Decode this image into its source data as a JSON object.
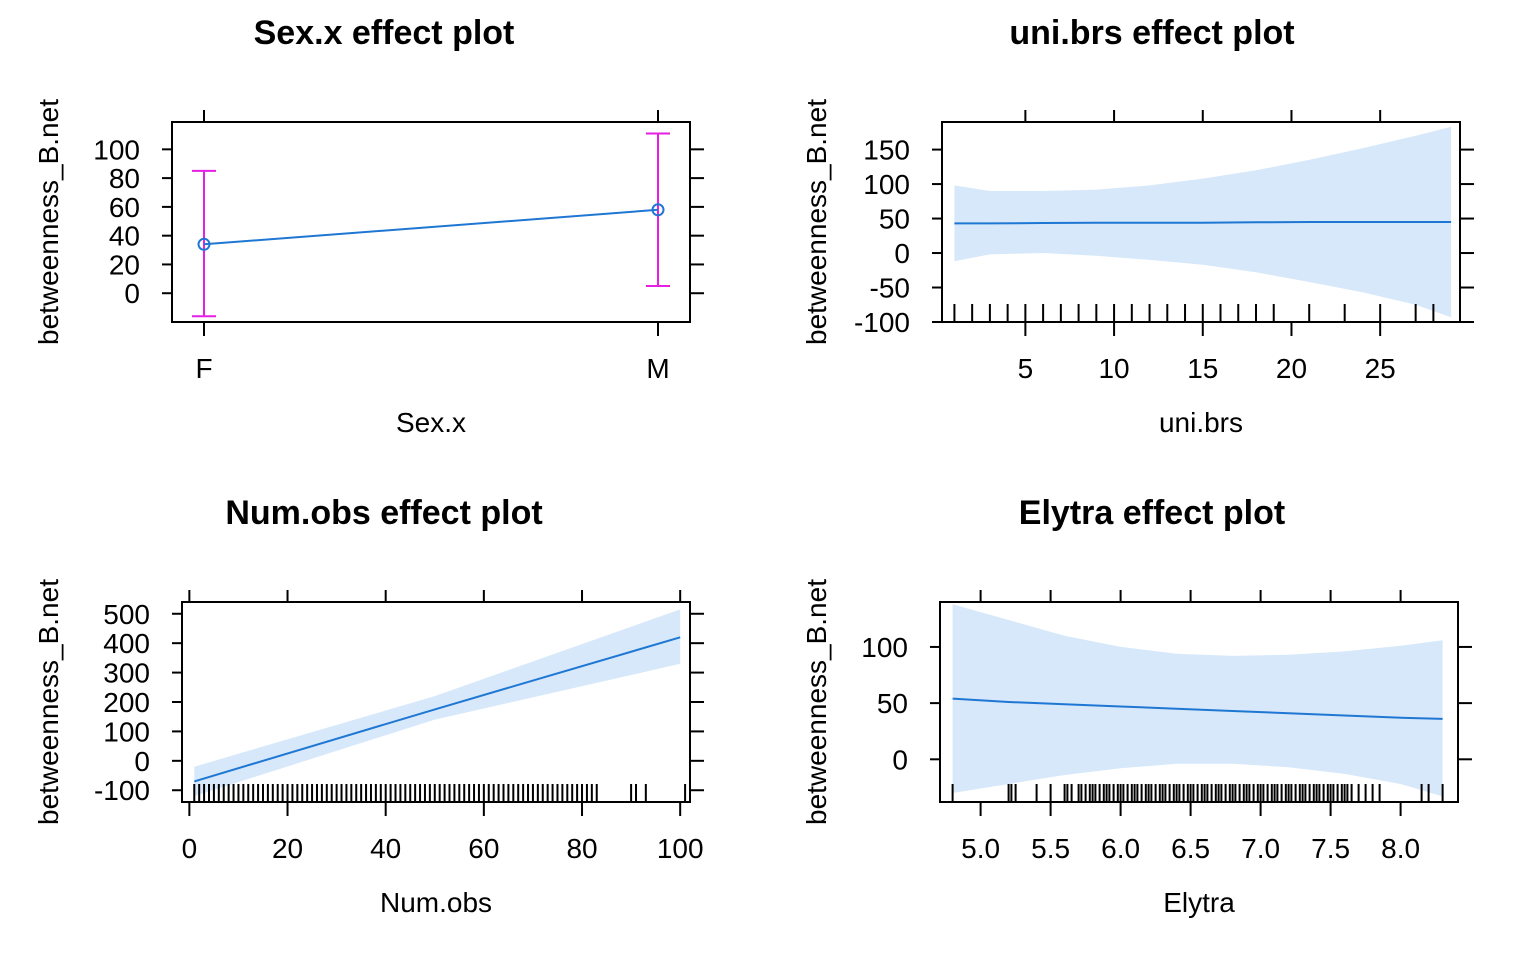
{
  "chart_data": [
    {
      "type": "errorbar",
      "title": "Sex.x effect plot",
      "xlabel": "Sex.x",
      "ylabel": "betweenness_B.net",
      "categories": [
        "F",
        "M"
      ],
      "estimates": [
        34,
        58
      ],
      "lower": [
        -16,
        5
      ],
      "upper": [
        85,
        111
      ],
      "ylim": [
        -20,
        119
      ],
      "yticks": [
        0,
        20,
        40,
        60,
        80,
        100
      ],
      "line_color": "#1f77d4",
      "bar_color": "#e61ee6"
    },
    {
      "type": "line",
      "title": "uni.brs effect plot",
      "xlabel": "uni.brs",
      "ylabel": "betweenness_B.net",
      "xlim": [
        0.3,
        29.5
      ],
      "ylim": [
        -100,
        190
      ],
      "xticks": [
        5,
        10,
        15,
        20,
        25
      ],
      "yticks": [
        -100,
        -50,
        0,
        50,
        100,
        150
      ],
      "x": [
        1,
        3,
        6,
        9,
        12,
        15,
        18,
        21,
        24,
        27,
        29
      ],
      "y": [
        43,
        43,
        43.5,
        44,
        44,
        44,
        44.5,
        45,
        45,
        45,
        45
      ],
      "lower": [
        -12,
        -2,
        0,
        -4,
        -10,
        -17,
        -28,
        -42,
        -57,
        -75,
        -93
      ],
      "upper": [
        98,
        90,
        90,
        92,
        98,
        108,
        120,
        135,
        152,
        170,
        183
      ],
      "rug": [
        1,
        2,
        3,
        4,
        5,
        6,
        7,
        8,
        9,
        10,
        11,
        12,
        13,
        14,
        15,
        16,
        17,
        18,
        19,
        21,
        23,
        25,
        27,
        28
      ]
    },
    {
      "type": "line",
      "title": "Num.obs effect plot",
      "xlabel": "Num.obs",
      "ylabel": "betweenness_B.net",
      "xlim": [
        -1.5,
        102
      ],
      "ylim": [
        -140,
        540
      ],
      "xticks": [
        0,
        20,
        40,
        60,
        80,
        100
      ],
      "yticks": [
        -100,
        0,
        100,
        200,
        300,
        400,
        500
      ],
      "x": [
        1,
        50,
        100
      ],
      "y": [
        -70,
        175,
        420
      ],
      "lower": [
        -120,
        140,
        330
      ],
      "upper": [
        -20,
        220,
        515
      ],
      "rug": [
        1,
        2,
        3,
        4,
        5,
        6,
        7,
        8,
        9,
        10,
        11,
        12,
        13,
        14,
        15,
        16,
        17,
        18,
        19,
        20,
        21,
        22,
        23,
        24,
        25,
        26,
        27,
        28,
        29,
        30,
        31,
        32,
        33,
        34,
        35,
        36,
        37,
        38,
        39,
        40,
        41,
        42,
        43,
        44,
        45,
        46,
        47,
        48,
        49,
        50,
        51,
        52,
        53,
        54,
        55,
        56,
        57,
        58,
        59,
        60,
        61,
        62,
        63,
        64,
        65,
        66,
        67,
        68,
        69,
        70,
        71,
        72,
        73,
        74,
        75,
        76,
        77,
        78,
        79,
        80,
        81,
        82,
        83,
        90,
        91,
        93,
        101
      ]
    },
    {
      "type": "line",
      "title": "Elytra effect plot",
      "xlabel": "Elytra",
      "ylabel": "betweenness_B.net",
      "xlim": [
        4.71,
        8.41
      ],
      "ylim": [
        -38,
        140
      ],
      "xticks": [
        "5.0",
        "5.5",
        "6.0",
        "6.5",
        "7.0",
        "7.5",
        "8.0"
      ],
      "yticks": [
        0,
        50,
        100
      ],
      "x": [
        4.8,
        5.2,
        5.6,
        6.0,
        6.4,
        6.8,
        7.2,
        7.6,
        8.0,
        8.3
      ],
      "y": [
        54,
        51,
        49,
        47,
        45,
        43,
        41,
        39,
        37,
        36
      ],
      "lower": [
        -30,
        -22,
        -14,
        -8,
        -4,
        -4,
        -7,
        -13,
        -22,
        -33
      ],
      "upper": [
        138,
        124,
        110,
        100,
        94,
        92,
        93,
        96,
        101,
        106
      ],
      "rug": [
        4.8,
        5.2,
        5.22,
        5.25,
        5.4,
        5.5,
        5.6,
        5.62,
        5.65,
        5.7,
        5.72,
        5.75,
        5.78,
        5.8,
        5.82,
        5.85,
        5.88,
        5.9,
        5.92,
        5.95,
        5.98,
        6.0,
        6.02,
        6.05,
        6.08,
        6.1,
        6.12,
        6.15,
        6.18,
        6.2,
        6.22,
        6.25,
        6.28,
        6.3,
        6.32,
        6.35,
        6.38,
        6.4,
        6.42,
        6.45,
        6.48,
        6.5,
        6.52,
        6.55,
        6.58,
        6.6,
        6.62,
        6.65,
        6.68,
        6.7,
        6.72,
        6.75,
        6.78,
        6.8,
        6.82,
        6.85,
        6.88,
        6.9,
        6.92,
        6.95,
        6.98,
        7.0,
        7.02,
        7.05,
        7.08,
        7.1,
        7.12,
        7.15,
        7.18,
        7.2,
        7.22,
        7.25,
        7.28,
        7.3,
        7.32,
        7.35,
        7.38,
        7.4,
        7.42,
        7.45,
        7.48,
        7.5,
        7.52,
        7.55,
        7.58,
        7.6,
        7.62,
        7.65,
        7.7,
        7.75,
        7.8,
        7.85,
        8.15,
        8.2,
        8.3
      ]
    }
  ],
  "colors": {
    "line": "#1f77d4",
    "band": "#d6e8fa",
    "errorbar": "#e61ee6",
    "rug": "#000000"
  }
}
